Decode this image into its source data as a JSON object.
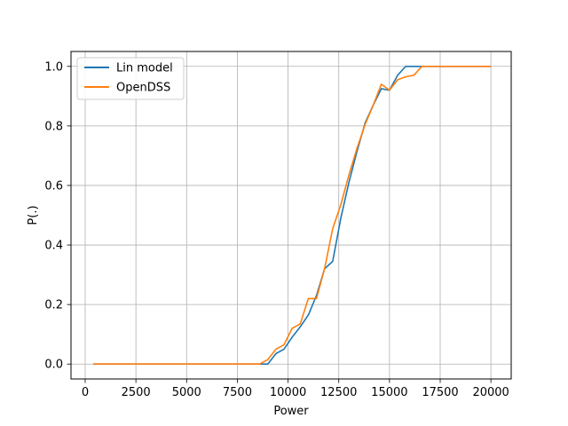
{
  "chart_data": {
    "type": "line",
    "xlabel": "Power",
    "ylabel": "P(.)",
    "xlim": [
      -700,
      21000
    ],
    "ylim": [
      -0.05,
      1.05
    ],
    "xticks": [
      0,
      2500,
      5000,
      7500,
      10000,
      12500,
      15000,
      17500,
      20000
    ],
    "yticks": [
      0.0,
      0.2,
      0.4,
      0.6,
      0.8,
      1.0
    ],
    "xtick_labels": [
      "0",
      "2500",
      "5000",
      "7500",
      "10000",
      "12500",
      "15000",
      "17500",
      "20000"
    ],
    "ytick_labels": [
      "0.0",
      "0.2",
      "0.4",
      "0.6",
      "0.8",
      "1.0"
    ],
    "grid": true,
    "legend_position": "top-left",
    "series": [
      {
        "name": "Lin model",
        "color": "#1f77b4",
        "x": [
          400,
          8600,
          9000,
          9400,
          9800,
          10200,
          10600,
          11000,
          11400,
          11800,
          12200,
          12600,
          13000,
          13400,
          13800,
          14200,
          14600,
          15000,
          15400,
          15800,
          16200,
          16600,
          17000,
          20000
        ],
        "y": [
          0.0,
          0.0,
          0.0,
          0.035,
          0.05,
          0.09,
          0.125,
          0.165,
          0.23,
          0.32,
          0.345,
          0.49,
          0.61,
          0.715,
          0.81,
          0.87,
          0.925,
          0.92,
          0.97,
          1.0,
          1.0,
          1.0,
          1.0,
          1.0
        ]
      },
      {
        "name": "OpenDSS",
        "color": "#ff7f0e",
        "x": [
          400,
          8600,
          9000,
          9400,
          9800,
          10200,
          10600,
          11000,
          11400,
          11800,
          12200,
          12600,
          13000,
          13400,
          13800,
          14200,
          14600,
          15000,
          15400,
          15800,
          16200,
          16600,
          17000,
          20000
        ],
        "y": [
          0.0,
          0.0,
          0.015,
          0.05,
          0.065,
          0.12,
          0.135,
          0.22,
          0.22,
          0.32,
          0.455,
          0.535,
          0.635,
          0.725,
          0.805,
          0.87,
          0.94,
          0.92,
          0.955,
          0.965,
          0.97,
          1.0,
          1.0,
          1.0
        ]
      }
    ]
  }
}
